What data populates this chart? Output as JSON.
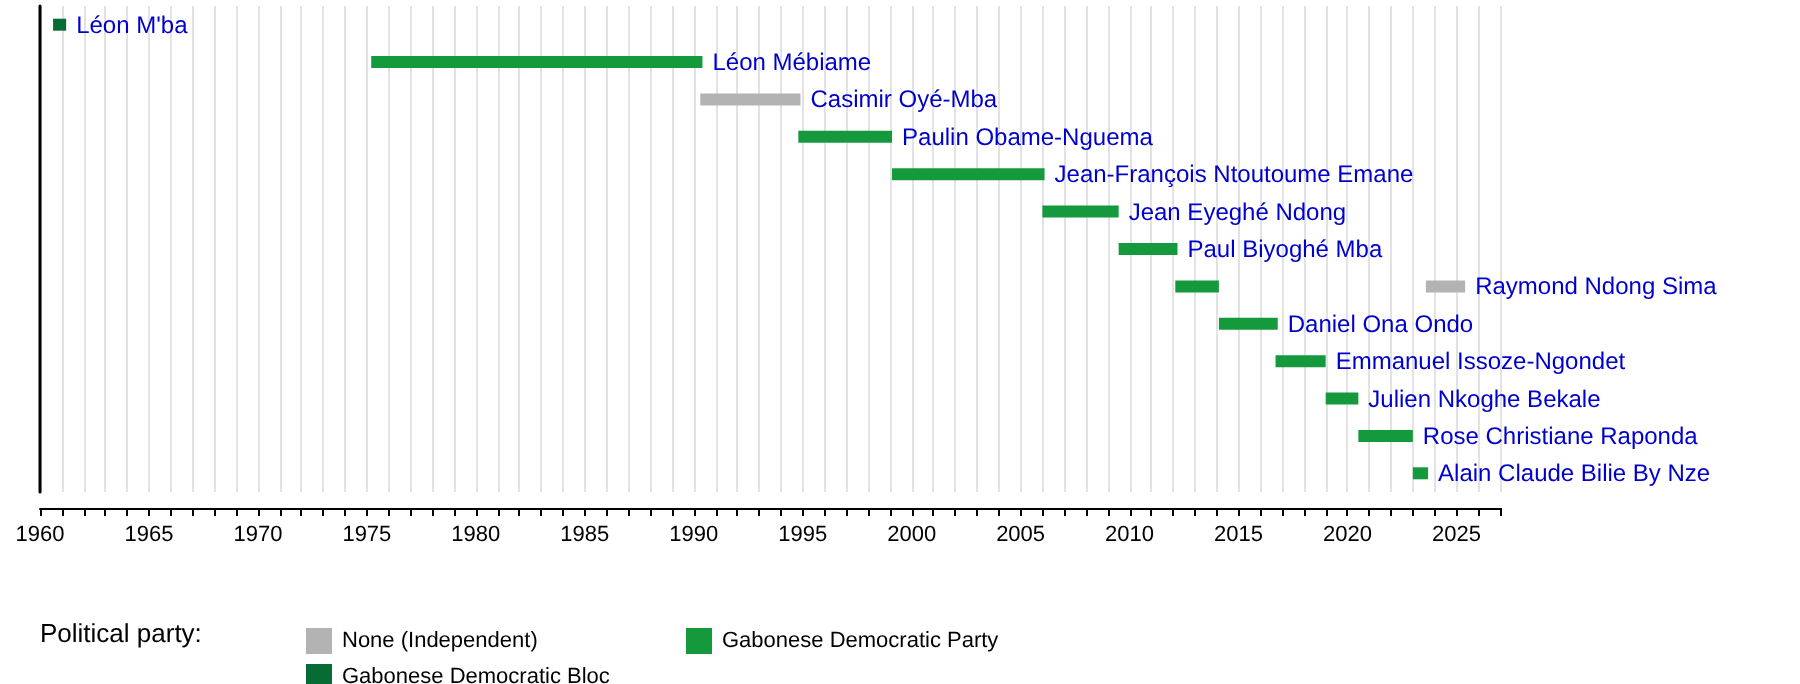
{
  "chart_data": {
    "type": "bar",
    "orientation": "horizontal",
    "legend_title": "Political party:",
    "legend": "bottom left",
    "grid": "x",
    "tick_labels": "x",
    "categories": [
      "Léon M'ba",
      "Léon Mébiame",
      "Casimir Oyé-Mba",
      "Paulin Obame-Nguema",
      "Jean-François Ntoutoume Emane",
      "Jean Eyeghé Ndong",
      "Paul Biyoghé Mba",
      "Raymond Ndong Sima",
      "Daniel Ona Ondo",
      "Emmanuel Issoze-Ngondet",
      "Julien Nkoghe Bekale",
      "Rose Christiane Raponda",
      "Alain Claude Bilie By Nze"
    ],
    "series": [
      {
        "name": "None (Independent)",
        "color": "#b3b3b3",
        "base": [
          null,
          null,
          1990.3,
          null,
          null,
          null,
          null,
          2023.6,
          null,
          null,
          null,
          null,
          null
        ],
        "values": [
          null,
          null,
          4.6,
          null,
          null,
          null,
          null,
          1.8,
          null,
          null,
          null,
          null,
          null
        ]
      },
      {
        "name": "Gabonese Democratic Party",
        "color": "#14993c",
        "base": [
          null,
          1975.2,
          null,
          1994.8,
          1999.1,
          2006.0,
          2009.5,
          2012.1,
          2014.1,
          2016.7,
          2019.0,
          2020.5,
          2023.0
        ],
        "values": [
          null,
          15.2,
          null,
          4.3,
          7.0,
          3.5,
          2.7,
          2.0,
          2.7,
          2.3,
          1.5,
          2.5,
          0.7
        ]
      },
      {
        "name": "Gabonese Democratic Bloc",
        "color": "#066b34",
        "base": [
          1960.6,
          null,
          null,
          null,
          null,
          null,
          null,
          null,
          null,
          null,
          null,
          null,
          null
        ],
        "values": [
          0.6,
          null,
          null,
          null,
          null,
          null,
          null,
          null,
          null,
          null,
          null,
          null,
          null
        ]
      }
    ],
    "xlim": [
      1960,
      2027
    ],
    "xticks": [
      1960,
      {
        "value": 1961,
        "label": null
      },
      {
        "value": 1962,
        "label": null
      },
      {
        "value": 1963,
        "label": null
      },
      {
        "value": 1964,
        "label": null
      },
      1965,
      {
        "value": 1966,
        "label": null
      },
      {
        "value": 1967,
        "label": null
      },
      {
        "value": 1968,
        "label": null
      },
      {
        "value": 1969,
        "label": null
      },
      1970,
      {
        "value": 1971,
        "label": null
      },
      {
        "value": 1972,
        "label": null
      },
      {
        "value": 1973,
        "label": null
      },
      {
        "value": 1974,
        "label": null
      },
      1975,
      {
        "value": 1976,
        "label": null
      },
      {
        "value": 1977,
        "label": null
      },
      {
        "value": 1978,
        "label": null
      },
      {
        "value": 1979,
        "label": null
      },
      1980,
      {
        "value": 1981,
        "label": null
      },
      {
        "value": 1982,
        "label": null
      },
      {
        "value": 1983,
        "label": null
      },
      {
        "value": 1984,
        "label": null
      },
      1985,
      {
        "value": 1986,
        "label": null
      },
      {
        "value": 1987,
        "label": null
      },
      {
        "value": 1988,
        "label": null
      },
      {
        "value": 1989,
        "label": null
      },
      1990,
      {
        "value": 1991,
        "label": null
      },
      {
        "value": 1992,
        "label": null
      },
      {
        "value": 1993,
        "label": null
      },
      {
        "value": 1994,
        "label": null
      },
      1995,
      {
        "value": 1996,
        "label": null
      },
      {
        "value": 1997,
        "label": null
      },
      {
        "value": 1998,
        "label": null
      },
      {
        "value": 1999,
        "label": null
      },
      2000,
      {
        "value": 2001,
        "label": null
      },
      {
        "value": 2002,
        "label": null
      },
      {
        "value": 2003,
        "label": null
      },
      {
        "value": 2004,
        "label": null
      },
      2005,
      {
        "value": 2006,
        "label": null
      },
      {
        "value": 2007,
        "label": null
      },
      {
        "value": 2008,
        "label": null
      },
      {
        "value": 2009,
        "label": null
      },
      2010,
      {
        "value": 2011,
        "label": null
      },
      {
        "value": 2012,
        "label": null
      },
      {
        "value": 2013,
        "label": null
      },
      {
        "value": 2014,
        "label": null
      },
      2015,
      {
        "value": 2016,
        "label": null
      },
      {
        "value": 2017,
        "label": null
      },
      {
        "value": 2018,
        "label": null
      },
      {
        "value": 2019,
        "label": null
      },
      2020,
      {
        "value": 2021,
        "label": null
      },
      {
        "value": 2022,
        "label": null
      },
      {
        "value": 2023,
        "label": null
      },
      {
        "value": 2024,
        "label": null
      },
      2025,
      {
        "value": 2026,
        "label": null
      },
      {
        "value": 2027,
        "label": null
      }
    ]
  }
}
